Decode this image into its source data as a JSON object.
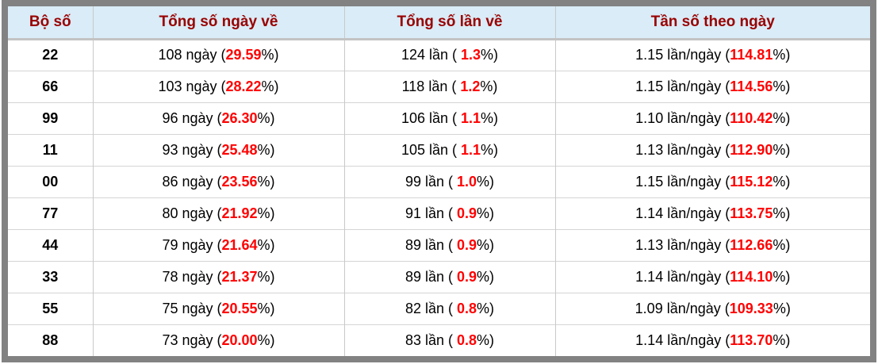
{
  "table": {
    "headers": [
      {
        "key": "pair",
        "label": "Bộ số"
      },
      {
        "key": "days",
        "label": "Tổng số ngày về"
      },
      {
        "key": "times",
        "label": "Tổng số lần về"
      },
      {
        "key": "freq",
        "label": "Tần số theo ngày"
      }
    ],
    "units": {
      "days": "ngày",
      "times": "lần",
      "freq": "lần/ngày"
    },
    "format": {
      "open": "(",
      "open_spaced": "( ",
      "close": "%)"
    },
    "rows": [
      {
        "pair": "22",
        "days": "108",
        "days_pct": "29.59",
        "times": "124",
        "times_pct": "1.3",
        "rate": "1.15",
        "rate_pct": "114.81"
      },
      {
        "pair": "66",
        "days": "103",
        "days_pct": "28.22",
        "times": "118",
        "times_pct": "1.2",
        "rate": "1.15",
        "rate_pct": "114.56"
      },
      {
        "pair": "99",
        "days": "96",
        "days_pct": "26.30",
        "times": "106",
        "times_pct": "1.1",
        "rate": "1.10",
        "rate_pct": "110.42"
      },
      {
        "pair": "11",
        "days": "93",
        "days_pct": "25.48",
        "times": "105",
        "times_pct": "1.1",
        "rate": "1.13",
        "rate_pct": "112.90"
      },
      {
        "pair": "00",
        "days": "86",
        "days_pct": "23.56",
        "times": "99",
        "times_pct": "1.0",
        "rate": "1.15",
        "rate_pct": "115.12"
      },
      {
        "pair": "77",
        "days": "80",
        "days_pct": "21.92",
        "times": "91",
        "times_pct": "0.9",
        "rate": "1.14",
        "rate_pct": "113.75"
      },
      {
        "pair": "44",
        "days": "79",
        "days_pct": "21.64",
        "times": "89",
        "times_pct": "0.9",
        "rate": "1.13",
        "rate_pct": "112.66"
      },
      {
        "pair": "33",
        "days": "78",
        "days_pct": "21.37",
        "times": "89",
        "times_pct": "0.9",
        "rate": "1.14",
        "rate_pct": "114.10"
      },
      {
        "pair": "55",
        "days": "75",
        "days_pct": "20.55",
        "times": "82",
        "times_pct": "0.8",
        "rate": "1.09",
        "rate_pct": "109.33"
      },
      {
        "pair": "88",
        "days": "73",
        "days_pct": "20.00",
        "times": "83",
        "times_pct": "0.8",
        "rate": "1.14",
        "rate_pct": "113.70"
      }
    ]
  },
  "colors": {
    "frame": "#828282",
    "header_bg": "#d9ecf7",
    "header_text": "#990000",
    "highlight": "#ff0000",
    "grid": "#c9c9c9"
  }
}
